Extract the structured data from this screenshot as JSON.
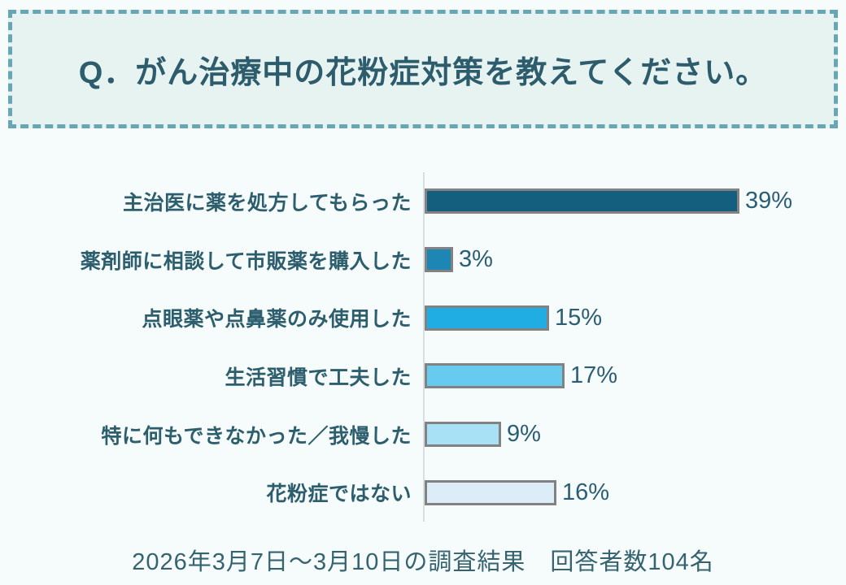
{
  "header": {
    "title": "Q．がん治療中の花粉症対策を教えてください。"
  },
  "footer": {
    "text": "2026年3月7日～3月10日の調査結果　回答者数104名"
  },
  "chart_data": {
    "type": "bar",
    "orientation": "horizontal",
    "title": "Q．がん治療中の花粉症対策を教えてください。",
    "categories": [
      "主治医に薬を処方してもらった",
      "薬剤師に相談して市販薬を購入した",
      "点眼薬や点鼻薬のみ使用した",
      "生活習慣で工夫した",
      "特に何もできなかった／我慢した",
      "花粉症ではない"
    ],
    "values": [
      39,
      3,
      15,
      17,
      9,
      16
    ],
    "value_labels": [
      "39%",
      "3%",
      "15%",
      "17%",
      "9%",
      "16%"
    ],
    "unit": "%",
    "xlim": [
      0,
      42
    ],
    "grid": "off",
    "legend": "none",
    "bar_colors": [
      "#155f7e",
      "#1e86b4",
      "#1fade4",
      "#66cbee",
      "#a8e0f5",
      "#dcedf8"
    ],
    "bar_border_color": "#828282",
    "axis_line_color": "#d9dee0",
    "label_color": "#2d5e6e",
    "value_label_color": "#2b5e74",
    "accent_color": "#2d5c6d",
    "header_background": "#e7f3f1",
    "header_border_color": "#68a6b6",
    "page_background": "#f6fbfc",
    "source_note": "2026年3月7日～3月10日の調査結果　回答者数104名",
    "respondents": "回答者数104名"
  }
}
